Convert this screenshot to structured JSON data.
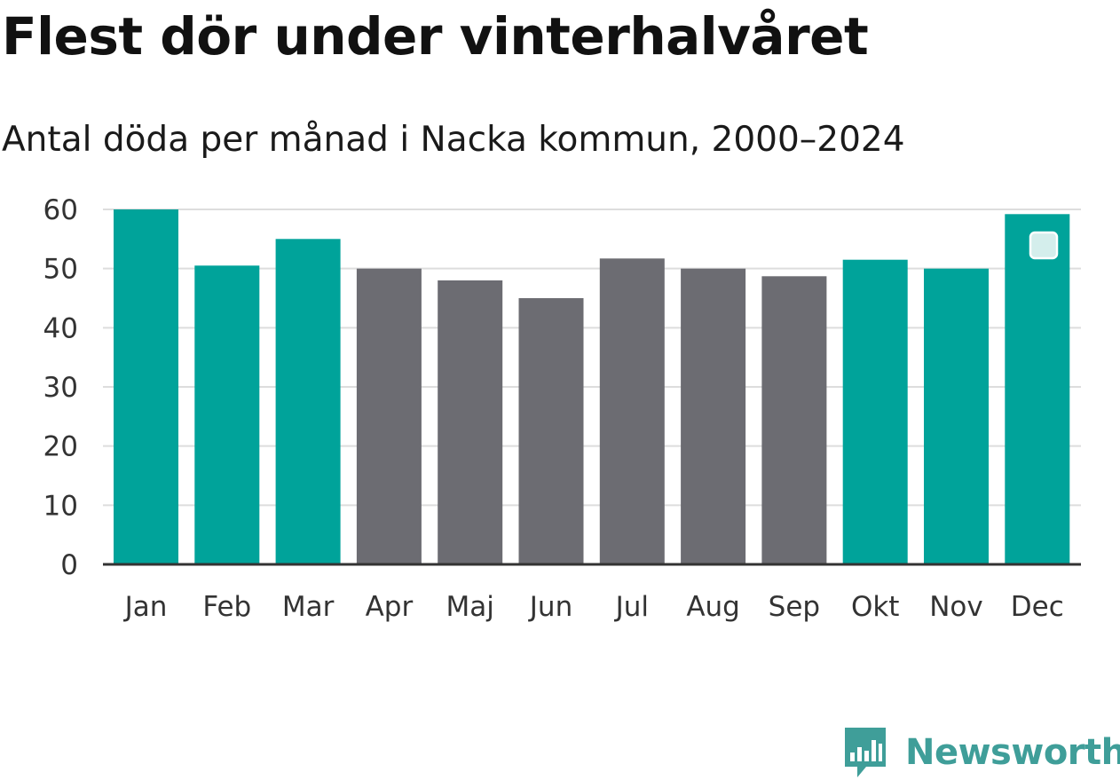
{
  "chart_data": {
    "type": "bar",
    "title": "Flest dör under vinterhalvåret",
    "subtitle": "Antal döda per månad i Nacka kommun, 2000–2024",
    "categories": [
      "Jan",
      "Feb",
      "Mar",
      "Apr",
      "Maj",
      "Jun",
      "Jul",
      "Aug",
      "Sep",
      "Okt",
      "Nov",
      "Dec"
    ],
    "values": [
      60,
      50.5,
      55,
      50,
      48,
      45,
      51.7,
      50,
      48.7,
      51.5,
      50,
      59.2
    ],
    "highlight": [
      true,
      true,
      true,
      false,
      false,
      false,
      false,
      false,
      false,
      true,
      true,
      true
    ],
    "ylim": [
      0,
      60
    ],
    "yticks": [
      0,
      10,
      20,
      30,
      40,
      50,
      60
    ],
    "grid": true,
    "colors": {
      "highlight": "#00a39a",
      "default": "#6c6c72",
      "grid": "#dddddd",
      "axis": "#333333"
    }
  },
  "branding": {
    "name": "Newsworthy",
    "logo_icon": "newsworthy-logo-icon",
    "color": "#3f9e99"
  }
}
